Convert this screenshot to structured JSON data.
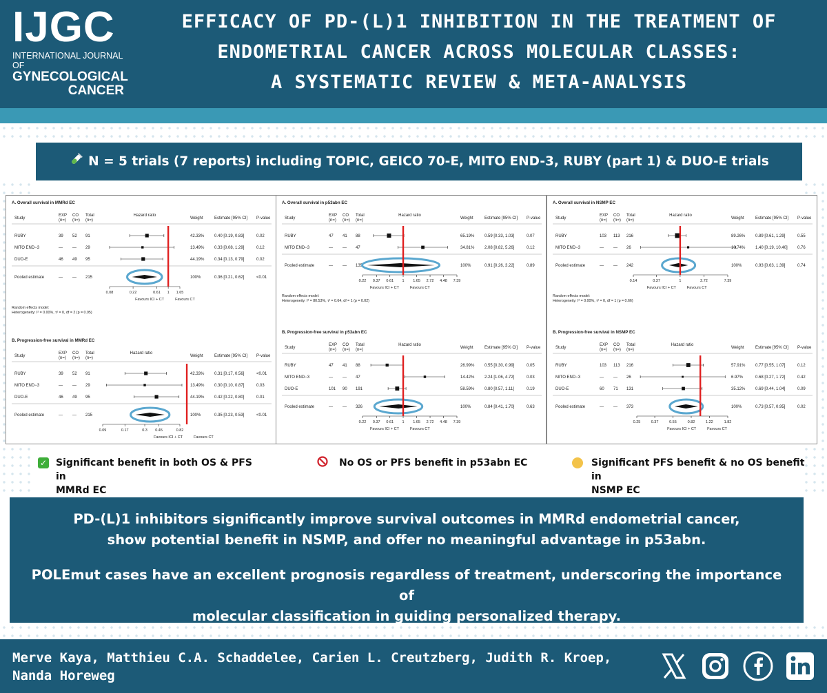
{
  "header": {
    "logo": {
      "big": "IJGC",
      "line1": "INTERNATIONAL JOURNAL OF",
      "line2": "GYNECOLOGICAL",
      "line3": "CANCER"
    },
    "title_lines": [
      "EFFICACY OF PD-(L)1 INHIBITION IN THE TREATMENT OF",
      "ENDOMETRIAL CANCER ACROSS MOLECULAR CLASSES:",
      "A SYSTEMATIC REVIEW & META-ANALYSIS"
    ]
  },
  "trials_bar": {
    "icon": "test-tube-icon",
    "text": "N = 5 trials (7 reports) including TOPIC, GEICO 70-E, MITO END-3, RUBY (part 1) & DUO-E trials"
  },
  "colors": {
    "navy": "#1c5a77",
    "teal": "#3a99b5",
    "ref_line": "#e02020",
    "highlight": "#5aa7cf"
  },
  "column_headers": {
    "study": "Study",
    "exp": "EXP",
    "co": "CO",
    "total": "Total",
    "n": "(n=)",
    "hr": "Hazard ratio",
    "weight": "Weight",
    "estimate": "Estimate [95% CI]",
    "p": "P-value"
  },
  "favours": {
    "left": "Favours ICI + CT",
    "right": "Favours CT"
  },
  "chart_data": [
    {
      "type": "forest",
      "title": "A. Overall survival in MMRd EC",
      "scale": "log",
      "xlim": [
        0.08,
        1.65
      ],
      "ticks": [
        0.08,
        0.22,
        0.61,
        1,
        1.65
      ],
      "rows": [
        {
          "study": "RUBY",
          "exp": "39",
          "co": "52",
          "total": "91",
          "hr": 0.4,
          "lo": 0.19,
          "hi": 0.83,
          "weight": "42.33%",
          "estimate": "0.40 [0.19, 0.83]",
          "p": "0.02"
        },
        {
          "study": "MITO END−3",
          "exp": "—",
          "co": "—",
          "total": "29",
          "hr": 0.33,
          "lo": 0.08,
          "hi": 1.29,
          "weight": "13.49%",
          "estimate": "0.33 [0.08, 1.29]",
          "p": "0.12"
        },
        {
          "study": "DUO-E",
          "exp": "46",
          "co": "49",
          "total": "95",
          "hr": 0.34,
          "lo": 0.13,
          "hi": 0.79,
          "weight": "44.19%",
          "estimate": "0.34 [0.13, 0.79]",
          "p": "0.02"
        }
      ],
      "pooled": {
        "study": "Pooled estimate",
        "exp": "—",
        "co": "—",
        "total": "215",
        "hr": 0.36,
        "lo": 0.21,
        "hi": 0.62,
        "weight": "100%",
        "estimate": "0.36 [0.21, 0.62]",
        "p": "<0.01"
      },
      "notes": [
        "Random effects model:",
        "Heterogeneity: I² = 0.00%, τ² = 0, df = 2 (p = 0.95)"
      ]
    },
    {
      "type": "forest",
      "title": "B. Progression-free survival in MMRd EC",
      "scale": "log",
      "xlim": [
        0.09,
        0.82
      ],
      "ticks": [
        0.09,
        0.17,
        0.3,
        0.45,
        0.82
      ],
      "rows": [
        {
          "study": "RUBY",
          "exp": "39",
          "co": "52",
          "total": "91",
          "hr": 0.31,
          "lo": 0.17,
          "hi": 0.56,
          "weight": "42.33%",
          "estimate": "0.31 [0.17, 0.56]",
          "p": "<0.01"
        },
        {
          "study": "MITO END−3",
          "exp": "—",
          "co": "—",
          "total": "29",
          "hr": 0.3,
          "lo": 0.1,
          "hi": 0.87,
          "weight": "13.49%",
          "estimate": "0.30 [0.10, 0.87]",
          "p": "0.03"
        },
        {
          "study": "DUO-E",
          "exp": "46",
          "co": "49",
          "total": "95",
          "hr": 0.42,
          "lo": 0.22,
          "hi": 0.8,
          "weight": "44.19%",
          "estimate": "0.42 [0.22, 0.80]",
          "p": "0.01"
        }
      ],
      "pooled": {
        "study": "Pooled estimate",
        "exp": "—",
        "co": "—",
        "total": "215",
        "hr": 0.35,
        "lo": 0.23,
        "hi": 0.53,
        "weight": "100%",
        "estimate": "0.35 [0.23, 0.53]",
        "p": "<0.01"
      },
      "notes": []
    },
    {
      "type": "forest",
      "title": "A. Overall survival in p53abn EC",
      "scale": "log",
      "xlim": [
        0.22,
        7.39
      ],
      "ticks": [
        0.22,
        0.37,
        0.61,
        1,
        1.65,
        2.72,
        4.48,
        7.39
      ],
      "rows": [
        {
          "study": "RUBY",
          "exp": "47",
          "co": "41",
          "total": "88",
          "hr": 0.59,
          "lo": 0.33,
          "hi": 1.03,
          "weight": "65.19%",
          "estimate": "0.59 [0.33, 1.03]",
          "p": "0.07"
        },
        {
          "study": "MITO END−3",
          "exp": "—",
          "co": "—",
          "total": "47",
          "hr": 2.08,
          "lo": 0.82,
          "hi": 5.26,
          "weight": "34.81%",
          "estimate": "2.08 [0.82, 5.26]",
          "p": "0.12"
        }
      ],
      "pooled": {
        "study": "Pooled estimate",
        "exp": "—",
        "co": "—",
        "total": "135",
        "hr": 0.91,
        "lo": 0.26,
        "hi": 3.22,
        "weight": "100%",
        "estimate": "0.91 [0.26, 3.22]",
        "p": "0.89"
      },
      "notes": [
        "Random effects model:",
        "Heterogeneity: I² = 80.53%, τ² = 0.64, df = 1 (p = 0.02)"
      ]
    },
    {
      "type": "forest",
      "title": "B. Progression-free survival in p53abn EC",
      "scale": "log",
      "xlim": [
        0.22,
        7.39
      ],
      "ticks": [
        0.22,
        0.37,
        0.61,
        1,
        1.65,
        2.72,
        4.48,
        7.39
      ],
      "rows": [
        {
          "study": "RUBY",
          "exp": "47",
          "co": "41",
          "total": "88",
          "hr": 0.55,
          "lo": 0.3,
          "hi": 0.99,
          "weight": "26.99%",
          "estimate": "0.55 [0.30, 0.99]",
          "p": "0.05"
        },
        {
          "study": "MITO END−3",
          "exp": "—",
          "co": "—",
          "total": "47",
          "hr": 2.24,
          "lo": 1.06,
          "hi": 4.72,
          "weight": "14.42%",
          "estimate": "2.24 [1.06, 4.72]",
          "p": "0.03"
        },
        {
          "study": "DUO-E",
          "exp": "101",
          "co": "90",
          "total": "191",
          "hr": 0.8,
          "lo": 0.57,
          "hi": 1.11,
          "weight": "58.59%",
          "estimate": "0.80 [0.57, 1.11]",
          "p": "0.19"
        }
      ],
      "pooled": {
        "study": "Pooled estimate",
        "exp": "—",
        "co": "—",
        "total": "326",
        "hr": 0.84,
        "lo": 0.41,
        "hi": 1.7,
        "weight": "100%",
        "estimate": "0.84 [0.41, 1.70]",
        "p": "0.63"
      },
      "notes": []
    },
    {
      "type": "forest",
      "title": "A. Overall survival in NSMP EC",
      "scale": "log",
      "xlim": [
        0.14,
        7.39
      ],
      "ticks": [
        0.14,
        0.37,
        1,
        2.72,
        7.39
      ],
      "rows": [
        {
          "study": "RUBY",
          "exp": "103",
          "co": "113",
          "total": "216",
          "hr": 0.89,
          "lo": 0.61,
          "hi": 1.29,
          "weight": "89.26%",
          "estimate": "0.89 [0.61, 1.29]",
          "p": "0.55"
        },
        {
          "study": "MITO END−3",
          "exp": "—",
          "co": "—",
          "total": "26",
          "hr": 1.4,
          "lo": 0.19,
          "hi": 10.4,
          "weight": "10.74%",
          "estimate": "1.40 [0.19, 10.40]",
          "p": "0.76"
        }
      ],
      "pooled": {
        "study": "Pooled estimate",
        "exp": "—",
        "co": "—",
        "total": "242",
        "hr": 0.93,
        "lo": 0.63,
        "hi": 1.39,
        "weight": "100%",
        "estimate": "0.93 [0.63, 1.39]",
        "p": "0.74"
      },
      "notes": [
        "Random effects model:",
        "Heterogeneity: I² = 0.00%, τ² = 0, df = 1 (p = 0.66)"
      ]
    },
    {
      "type": "forest",
      "title": "B. Progression-free survival in NSMP EC",
      "scale": "log",
      "xlim": [
        0.25,
        1.82
      ],
      "ticks": [
        0.25,
        0.37,
        0.55,
        0.82,
        1.22,
        1.82
      ],
      "rows": [
        {
          "study": "RUBY",
          "exp": "103",
          "co": "113",
          "total": "216",
          "hr": 0.77,
          "lo": 0.55,
          "hi": 1.07,
          "weight": "57.91%",
          "estimate": "0.77 [0.55, 1.07]",
          "p": "0.12"
        },
        {
          "study": "MITO END−3",
          "exp": "—",
          "co": "—",
          "total": "26",
          "hr": 0.68,
          "lo": 0.27,
          "hi": 1.72,
          "weight": "6.97%",
          "estimate": "0.68 [0.27, 1.72]",
          "p": "0.42"
        },
        {
          "study": "DUO-E",
          "exp": "60",
          "co": "71",
          "total": "131",
          "hr": 0.69,
          "lo": 0.44,
          "hi": 1.04,
          "weight": "35.12%",
          "estimate": "0.69 [0.44, 1.04]",
          "p": "0.09"
        }
      ],
      "pooled": {
        "study": "Pooled estimate",
        "exp": "—",
        "co": "—",
        "total": "373",
        "hr": 0.73,
        "lo": 0.57,
        "hi": 0.95,
        "weight": "100%",
        "estimate": "0.73 [0.57, 0.95]",
        "p": "0.02"
      },
      "notes": []
    }
  ],
  "summaries": {
    "mmrd": {
      "icon": "check-icon",
      "lines": [
        "Significant benefit in both OS & PFS in",
        "MMRd EC"
      ]
    },
    "p53": {
      "icon": "prohibited-icon",
      "lines": [
        "No OS or PFS benefit in p53abn EC"
      ]
    },
    "nsmp": {
      "icon": "yellow-circle-icon",
      "lines": [
        "Significant PFS benefit & no OS benefit in",
        "NSMP EC"
      ]
    }
  },
  "conclusion": {
    "p1_lines": [
      "PD-(L)1 inhibitors significantly improve survival outcomes in MMRd endometrial cancer,",
      "show potential benefit in NSMP, and offer no meaningful advantage in p53abn."
    ],
    "p2_lines": [
      "POLEmut cases have an excellent prognosis regardless of treatment, underscoring the importance of",
      "molecular classification in guiding personalized therapy."
    ]
  },
  "footer": {
    "author_lines": [
      "Merve Kaya, Matthieu C.A. Schaddelee, Carien L. Creutzberg, Judith R. Kroep,",
      "Nanda Horeweg"
    ],
    "social": [
      "x-icon",
      "instagram-icon",
      "facebook-icon",
      "linkedin-icon"
    ]
  }
}
